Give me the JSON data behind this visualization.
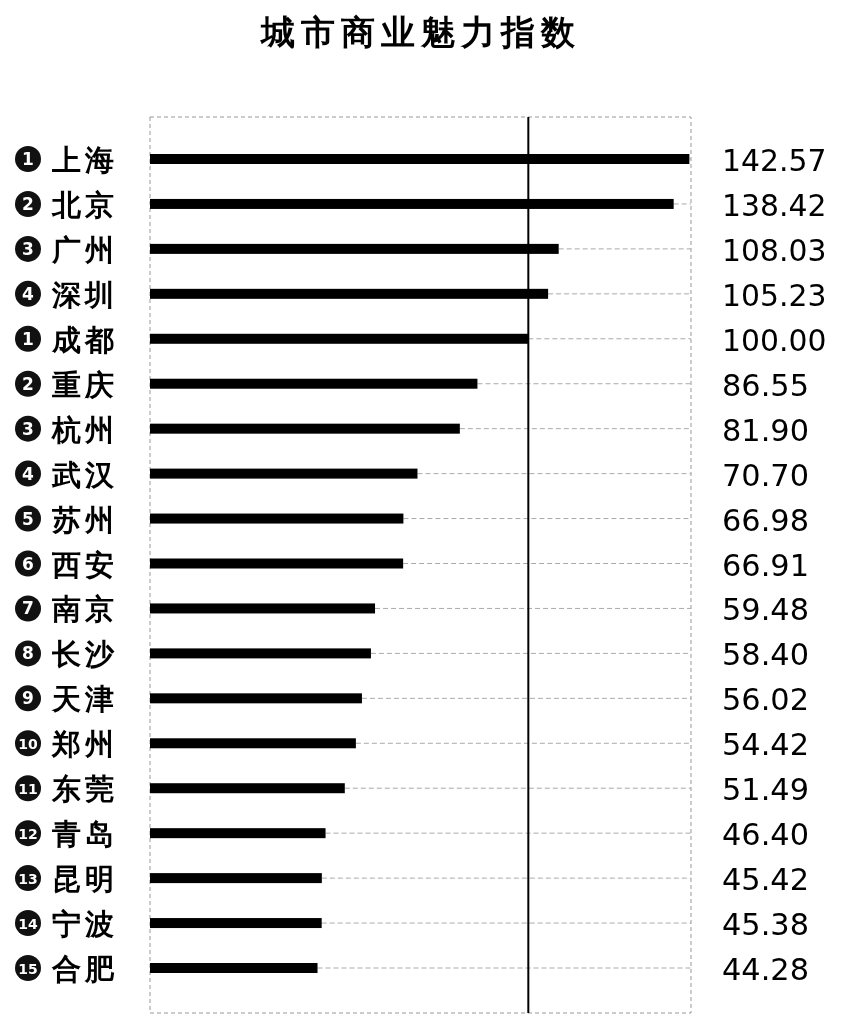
{
  "chart_data": {
    "type": "bar",
    "orientation": "horizontal",
    "title": "城市商业魅力指数",
    "categories": [
      "1 上海",
      "2 北京",
      "3 广州",
      "4 深圳",
      "1 成都",
      "2 重庆",
      "3 杭州",
      "4 武汉",
      "5 苏州",
      "6 西安",
      "7 南京",
      "8 长沙",
      "9 天津",
      "10 郑州",
      "11 东莞",
      "12 青岛",
      "13 昆明",
      "14 宁波",
      "15 合肥"
    ],
    "values": [
      142.57,
      138.42,
      108.03,
      105.23,
      100.0,
      86.55,
      81.9,
      70.7,
      66.98,
      66.91,
      59.48,
      58.4,
      56.02,
      54.42,
      51.49,
      46.4,
      45.42,
      45.38,
      44.28
    ],
    "value_labels": [
      "142.57",
      "138.42",
      "108.03",
      "105.23",
      "100.00",
      "86.55",
      "81.90",
      "70.70",
      "66.98",
      "66.91",
      "59.48",
      "58.40",
      "56.02",
      "54.42",
      "51.49",
      "46.40",
      "45.42",
      "45.38",
      "44.28"
    ],
    "color": "#000000",
    "xlim": [
      0,
      143
    ],
    "ref_lines": [
      {
        "axis": "x",
        "value": 100,
        "color": "#000000",
        "line_style": "solid"
      }
    ]
  }
}
